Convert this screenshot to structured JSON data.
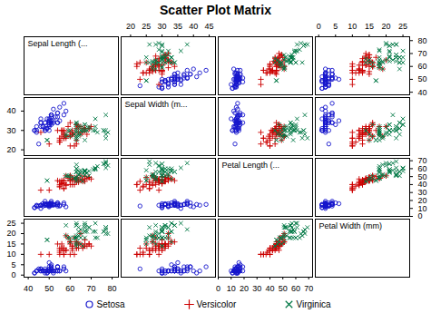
{
  "chart_data": {
    "type": "scatter",
    "title": "Scatter Plot Matrix",
    "variables": [
      "Sepal Length (...",
      "Sepal Width (m...",
      "Petal Length (...",
      "Petal Width (mm)"
    ],
    "ranges": [
      [
        38,
        83
      ],
      [
        17,
        47
      ],
      [
        0,
        73
      ],
      [
        -1,
        27
      ]
    ],
    "xticks": [
      [
        40,
        50,
        60,
        70,
        80
      ],
      [
        20,
        25,
        30,
        35,
        40,
        45
      ],
      [
        0,
        10,
        20,
        30,
        40,
        50,
        60,
        70
      ],
      [
        0,
        5,
        10,
        15,
        20,
        25
      ]
    ],
    "yticks": [
      [
        40,
        50,
        60,
        70,
        80
      ],
      [
        20,
        30,
        40
      ],
      [
        0,
        10,
        20,
        30,
        40,
        50,
        60,
        70
      ],
      [
        0,
        5,
        10,
        15,
        20,
        25
      ]
    ],
    "grid": false,
    "legend": "bottom",
    "series": [
      {
        "name": "Setosa",
        "color": "#1515cc",
        "marker": "circle",
        "values": [
          [
            50,
            33,
            14,
            2
          ],
          [
            46,
            34,
            14,
            3
          ],
          [
            47,
            32,
            13,
            2
          ],
          [
            43,
            30,
            11,
            1
          ],
          [
            50,
            36,
            14,
            2
          ],
          [
            54,
            39,
            17,
            4
          ],
          [
            46,
            34,
            14,
            3
          ],
          [
            50,
            34,
            15,
            2
          ],
          [
            44,
            29,
            14,
            2
          ],
          [
            49,
            31,
            15,
            1
          ],
          [
            54,
            37,
            15,
            2
          ],
          [
            48,
            34,
            16,
            2
          ],
          [
            48,
            30,
            14,
            1
          ],
          [
            43,
            30,
            11,
            1
          ],
          [
            58,
            40,
            12,
            2
          ],
          [
            57,
            44,
            15,
            4
          ],
          [
            54,
            39,
            13,
            4
          ],
          [
            51,
            35,
            14,
            3
          ],
          [
            57,
            38,
            17,
            3
          ],
          [
            51,
            38,
            15,
            3
          ],
          [
            54,
            34,
            17,
            2
          ],
          [
            51,
            37,
            15,
            4
          ],
          [
            46,
            36,
            10,
            2
          ],
          [
            51,
            33,
            17,
            5
          ],
          [
            48,
            34,
            19,
            2
          ],
          [
            50,
            30,
            16,
            2
          ],
          [
            50,
            34,
            16,
            4
          ],
          [
            52,
            35,
            15,
            2
          ],
          [
            52,
            34,
            14,
            2
          ],
          [
            47,
            32,
            16,
            2
          ],
          [
            48,
            31,
            16,
            2
          ],
          [
            54,
            34,
            15,
            4
          ],
          [
            52,
            41,
            15,
            1
          ],
          [
            55,
            42,
            14,
            2
          ],
          [
            49,
            31,
            15,
            2
          ],
          [
            50,
            32,
            12,
            2
          ],
          [
            55,
            35,
            13,
            2
          ],
          [
            49,
            36,
            14,
            1
          ],
          [
            44,
            30,
            13,
            2
          ],
          [
            51,
            34,
            15,
            2
          ],
          [
            50,
            35,
            13,
            3
          ],
          [
            45,
            23,
            13,
            3
          ],
          [
            44,
            32,
            13,
            2
          ],
          [
            50,
            35,
            16,
            6
          ],
          [
            51,
            38,
            19,
            4
          ],
          [
            48,
            30,
            14,
            3
          ],
          [
            51,
            38,
            16,
            2
          ],
          [
            46,
            32,
            14,
            2
          ],
          [
            53,
            37,
            15,
            2
          ],
          [
            50,
            33,
            14,
            2
          ]
        ]
      },
      {
        "name": "Versicolor",
        "color": "#cc0000",
        "marker": "plus",
        "values": [
          [
            70,
            32,
            47,
            14
          ],
          [
            64,
            32,
            45,
            15
          ],
          [
            69,
            31,
            49,
            15
          ],
          [
            65,
            28,
            46,
            15
          ],
          [
            63,
            33,
            47,
            16
          ],
          [
            46,
            29,
            33,
            10
          ],
          [
            69,
            31,
            49,
            15
          ],
          [
            62,
            22,
            40,
            10
          ],
          [
            59,
            32,
            48,
            18
          ],
          [
            61,
            28,
            40,
            13
          ],
          [
            63,
            25,
            49,
            15
          ],
          [
            61,
            28,
            47,
            12
          ],
          [
            60,
            27,
            51,
            16
          ],
          [
            65,
            32,
            51,
            20
          ],
          [
            57,
            28,
            45,
            13
          ],
          [
            63,
            33,
            47,
            16
          ],
          [
            58,
            27,
            51,
            19
          ],
          [
            66,
            29,
            46,
            13
          ],
          [
            57,
            28,
            45,
            13
          ],
          [
            67,
            31,
            44,
            14
          ],
          [
            63,
            31,
            44,
            13
          ],
          [
            56,
            30,
            45,
            15
          ],
          [
            57,
            26,
            35,
            10
          ],
          [
            57,
            30,
            42,
            12
          ],
          [
            62,
            28,
            48,
            18
          ],
          [
            61,
            29,
            47,
            14
          ],
          [
            64,
            29,
            43,
            13
          ],
          [
            66,
            31,
            44,
            14
          ],
          [
            68,
            28,
            48,
            14
          ],
          [
            67,
            30,
            50,
            17
          ],
          [
            60,
            29,
            45,
            15
          ],
          [
            57,
            26,
            35,
            10
          ],
          [
            55,
            24,
            38,
            11
          ],
          [
            55,
            24,
            37,
            10
          ],
          [
            58,
            27,
            39,
            12
          ],
          [
            60,
            27,
            51,
            16
          ],
          [
            54,
            30,
            45,
            15
          ],
          [
            60,
            34,
            45,
            16
          ],
          [
            67,
            31,
            47,
            15
          ],
          [
            63,
            23,
            44,
            13
          ],
          [
            56,
            30,
            41,
            13
          ],
          [
            55,
            25,
            40,
            13
          ],
          [
            55,
            26,
            44,
            12
          ],
          [
            61,
            30,
            46,
            14
          ],
          [
            58,
            26,
            40,
            12
          ],
          [
            50,
            23,
            33,
            10
          ],
          [
            56,
            27,
            42,
            13
          ],
          [
            57,
            30,
            42,
            12
          ],
          [
            57,
            29,
            42,
            13
          ],
          [
            60,
            22,
            40,
            10
          ]
        ]
      },
      {
        "name": "Virginica",
        "color": "#007744",
        "marker": "times",
        "values": [
          [
            63,
            33,
            60,
            25
          ],
          [
            58,
            27,
            51,
            19
          ],
          [
            71,
            30,
            59,
            21
          ],
          [
            63,
            29,
            56,
            18
          ],
          [
            65,
            30,
            58,
            22
          ],
          [
            76,
            30,
            66,
            21
          ],
          [
            49,
            25,
            45,
            17
          ],
          [
            73,
            29,
            63,
            18
          ],
          [
            67,
            25,
            58,
            18
          ],
          [
            72,
            36,
            61,
            25
          ],
          [
            65,
            32,
            51,
            20
          ],
          [
            64,
            27,
            53,
            19
          ],
          [
            66,
            30,
            44,
            14
          ],
          [
            68,
            30,
            55,
            21
          ],
          [
            67,
            31,
            56,
            24
          ],
          [
            63,
            31,
            60,
            18
          ],
          [
            78,
            29,
            64,
            20
          ],
          [
            77,
            30,
            61,
            23
          ],
          [
            63,
            34,
            56,
            24
          ],
          [
            60,
            30,
            48,
            18
          ],
          [
            69,
            32,
            57,
            23
          ],
          [
            62,
            28,
            48,
            18
          ],
          [
            59,
            30,
            51,
            18
          ],
          [
            60,
            27,
            51,
            16
          ],
          [
            67,
            33,
            57,
            21
          ],
          [
            63,
            30,
            44,
            14
          ],
          [
            69,
            31,
            51,
            23
          ],
          [
            67,
            31,
            56,
            24
          ],
          [
            67,
            30,
            52,
            23
          ],
          [
            65,
            28,
            46,
            15
          ],
          [
            77,
            26,
            69,
            23
          ],
          [
            63,
            34,
            56,
            24
          ],
          [
            67,
            33,
            57,
            21
          ],
          [
            72,
            32,
            60,
            18
          ],
          [
            62,
            28,
            48,
            18
          ],
          [
            63,
            33,
            47,
            16
          ],
          [
            77,
            38,
            67,
            22
          ],
          [
            63,
            26,
            65,
            19
          ],
          [
            67,
            30,
            52,
            23
          ],
          [
            64,
            28,
            56,
            21
          ],
          [
            76,
            30,
            66,
            21
          ],
          [
            49,
            25,
            45,
            17
          ],
          [
            72,
            30,
            59,
            21
          ],
          [
            63,
            25,
            49,
            15
          ],
          [
            58,
            28,
            51,
            24
          ],
          [
            64,
            32,
            53,
            23
          ],
          [
            65,
            30,
            55,
            18
          ],
          [
            77,
            28,
            67,
            20
          ],
          [
            63,
            27,
            49,
            18
          ],
          [
            67,
            33,
            57,
            25
          ]
        ]
      }
    ]
  }
}
